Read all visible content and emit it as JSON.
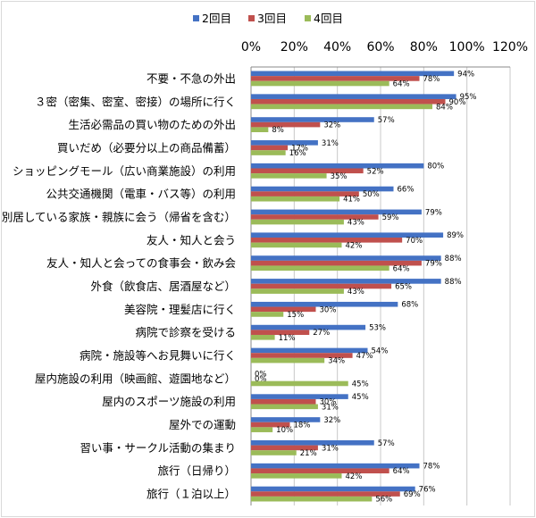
{
  "chart_data": {
    "type": "bar",
    "orientation": "horizontal",
    "title": "",
    "xlabel": "",
    "ylabel": "",
    "xlim": [
      0,
      120
    ],
    "xticks": [
      "0%",
      "20%",
      "40%",
      "60%",
      "80%",
      "100%",
      "120%"
    ],
    "grid": true,
    "legend_position": "top",
    "categories": [
      "不要・不急の外出",
      "３密（密集、密室、密接）の場所に行く",
      "生活必需品の買い物のための外出",
      "買いだめ（必要分以上の商品備蓄）",
      "ショッピングモール（広い商業施設）の利用",
      "公共交通機関（電車・バス等）の利用",
      "別居している家族・親族に会う（帰省を含む）",
      "友人・知人と会う",
      "友人・知人と会っての食事会・飲み会",
      "外食（飲食店、居酒屋など）",
      "美容院・理髪店に行く",
      "病院で診察を受ける",
      "病院・施設等へお見舞いに行く",
      "屋内施設の利用（映画館、遊園地など）",
      "屋内のスポーツ施設の利用",
      "屋外での運動",
      "習い事・サークル活動の集まり",
      "旅行（日帰り）",
      "旅行（１泊以上）"
    ],
    "series": [
      {
        "name": "2回目",
        "color": "#4472c4",
        "values": [
          94,
          95,
          57,
          31,
          80,
          66,
          79,
          89,
          88,
          88,
          68,
          53,
          54,
          0,
          45,
          32,
          57,
          78,
          76
        ],
        "labels": [
          "94%",
          "95%",
          "57%",
          "31%",
          "80%",
          "66%",
          "79%",
          "89%",
          "88%",
          "88%",
          "68%",
          "53%",
          "54%",
          "0%",
          "45%",
          "32%",
          "57%",
          "78%",
          "76%"
        ]
      },
      {
        "name": "3回目",
        "color": "#c0504d",
        "values": [
          78,
          90,
          32,
          17,
          52,
          50,
          59,
          70,
          79,
          65,
          30,
          27,
          47,
          0,
          30,
          18,
          31,
          64,
          69
        ],
        "labels": [
          "78%",
          "90%",
          "32%",
          "17%",
          "52%",
          "50%",
          "59%",
          "70%",
          "79%",
          "65%",
          "30%",
          "27%",
          "47%",
          "0%",
          "30%",
          "18%",
          "31%",
          "64%",
          "69%"
        ]
      },
      {
        "name": "4回目",
        "color": "#9bbb59",
        "values": [
          64,
          84,
          8,
          16,
          35,
          41,
          43,
          42,
          64,
          43,
          15,
          11,
          34,
          45,
          31,
          10,
          21,
          42,
          56
        ],
        "labels": [
          "64%",
          "84%",
          "8%",
          "16%",
          "35%",
          "41%",
          "43%",
          "42%",
          "64%",
          "43%",
          "15%",
          "11%",
          "34%",
          "45%",
          "31%",
          "10%",
          "21%",
          "42%",
          "56%"
        ]
      }
    ]
  }
}
